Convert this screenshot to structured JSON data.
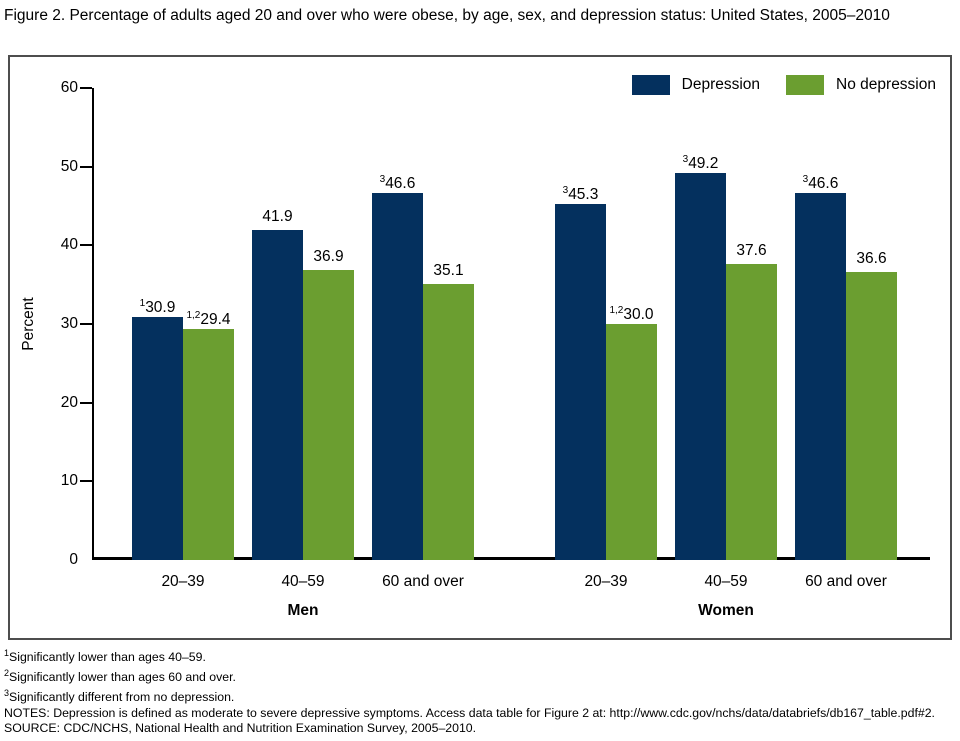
{
  "title": "Figure 2. Percentage of adults aged 20 and over who were obese, by age, sex, and depression status: United States, 2005–2010",
  "colors": {
    "depression_bar": "#04305e",
    "no_depression_bar": "#6b9e30",
    "frame_border": "#4d4d4d",
    "axis": "#000000"
  },
  "chart_data": {
    "type": "bar",
    "title": "Percentage of adults aged 20 and over who were obese, by age, sex, and depression status: United States, 2005–2010",
    "ylabel": "Percent",
    "xlabel": "",
    "ylim": [
      0,
      60
    ],
    "yticks": [
      0,
      10,
      20,
      30,
      40,
      50,
      60
    ],
    "grid": "off",
    "legend": {
      "position": "top-right",
      "entries": [
        {
          "label": "Depression",
          "color": "#04305e"
        },
        {
          "label": "No depression",
          "color": "#6b9e30"
        }
      ]
    },
    "groups": [
      {
        "label": "Men",
        "categories": [
          "20–39",
          "40–59",
          "60 and over"
        ],
        "series": [
          {
            "name": "Depression",
            "values": [
              30.9,
              41.9,
              46.6
            ],
            "labels": [
              "30.9",
              "41.9",
              "46.6"
            ],
            "superscripts": [
              "1",
              "",
              "3"
            ]
          },
          {
            "name": "No depression",
            "values": [
              29.4,
              36.9,
              35.1
            ],
            "labels": [
              "29.4",
              "36.9",
              "35.1"
            ],
            "superscripts": [
              "1,2",
              "",
              ""
            ]
          }
        ]
      },
      {
        "label": "Women",
        "categories": [
          "20–39",
          "40–59",
          "60 and over"
        ],
        "series": [
          {
            "name": "Depression",
            "values": [
              45.3,
              49.2,
              46.6
            ],
            "labels": [
              "45.3",
              "49.2",
              "46.6"
            ],
            "superscripts": [
              "3",
              "3",
              "3"
            ]
          },
          {
            "name": "No depression",
            "values": [
              30.0,
              37.6,
              36.6
            ],
            "labels": [
              "30.0",
              "37.6",
              "36.6"
            ],
            "superscripts": [
              "1,2",
              "",
              ""
            ]
          }
        ]
      }
    ]
  },
  "footnotes": [
    {
      "sup": "1",
      "text": "Significantly lower than ages 40–59."
    },
    {
      "sup": "2",
      "text": "Significantly lower than ages 60 and over."
    },
    {
      "sup": "3",
      "text": "Significantly different from no depression."
    }
  ],
  "notes": "NOTES: Depression is defined as moderate to severe depressive symptoms. Access data table for Figure 2 at: http://www.cdc.gov/nchs/data/databriefs/db167_table.pdf#2.",
  "source": "SOURCE: CDC/NCHS, National Health and Nutrition Examination Survey, 2005–2010."
}
